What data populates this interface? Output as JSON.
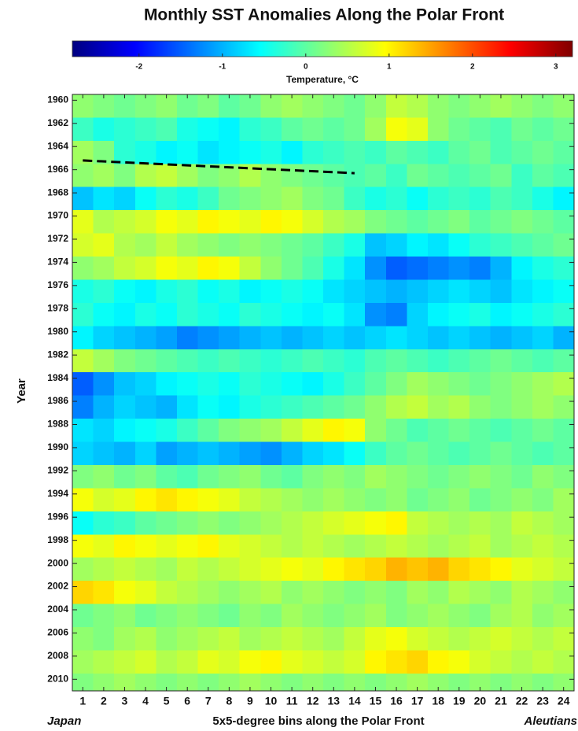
{
  "chart_data": {
    "type": "heatmap",
    "title": "Monthly SST Anomalies Along the Polar Front",
    "colormap": "jet",
    "clim": [
      -2.8,
      3.2
    ],
    "colorbar_ticks": [
      -2,
      -1,
      0,
      1,
      2,
      3
    ],
    "colorbar_label": "Temperature, °C",
    "y_label": "Year",
    "x_label": "5x5-degree bins along the Polar Front",
    "x_left_label": "Japan",
    "x_right_label": "Aleutians",
    "categories": [
      1,
      2,
      3,
      4,
      5,
      6,
      7,
      8,
      9,
      10,
      11,
      12,
      13,
      14,
      15,
      16,
      17,
      18,
      19,
      20,
      21,
      22,
      23,
      24
    ],
    "ylim": [
      1959.5,
      2011
    ],
    "yticks": [
      1960,
      1962,
      1964,
      1966,
      1968,
      1970,
      1972,
      1974,
      1976,
      1978,
      1980,
      1982,
      1984,
      1986,
      1988,
      1990,
      1992,
      1994,
      1996,
      1998,
      2000,
      2002,
      2004,
      2006,
      2008,
      2010
    ],
    "y_bins": [
      1959.5,
      1961.5,
      1963.5,
      1965.5,
      1967.5,
      1969.5,
      1971.5,
      1973.5,
      1975.5,
      1977.5,
      1979.5,
      1981.5,
      1983.5,
      1985.5,
      1987.5,
      1989.5,
      1991.5,
      1993.5,
      1995.5,
      1997.5,
      1999.5,
      2001.5,
      2003.5,
      2005.5,
      2007.5,
      2009.5,
      2011
    ],
    "values": [
      [
        0.3,
        0.2,
        0.1,
        0.2,
        0.3,
        0.1,
        0.2,
        0.0,
        0.1,
        0.3,
        0.4,
        0.3,
        0.2,
        0.1,
        0.3,
        0.6,
        0.5,
        0.3,
        0.2,
        0.3,
        0.4,
        0.3,
        0.2,
        0.3
      ],
      [
        -0.2,
        -0.4,
        -0.3,
        -0.2,
        -0.1,
        -0.4,
        -0.5,
        -0.6,
        -0.3,
        -0.2,
        0.0,
        0.1,
        0.0,
        0.1,
        0.4,
        0.9,
        0.8,
        0.3,
        0.1,
        0.0,
        -0.1,
        0.1,
        0.0,
        0.1
      ],
      [
        0.4,
        0.2,
        -0.3,
        -0.4,
        -0.6,
        -0.5,
        -0.7,
        -0.6,
        -0.5,
        -0.4,
        -0.6,
        -0.3,
        -0.2,
        -0.1,
        -0.2,
        0.0,
        -0.1,
        -0.2,
        0.0,
        0.1,
        -0.1,
        0.0,
        0.1,
        0.0
      ],
      [
        0.3,
        0.4,
        0.2,
        0.5,
        0.6,
        0.4,
        0.2,
        0.3,
        0.5,
        0.3,
        0.2,
        0.1,
        0.0,
        -0.1,
        0.0,
        -0.2,
        0.1,
        0.0,
        -0.1,
        0.0,
        0.1,
        -0.2,
        0.0,
        -0.1
      ],
      [
        -0.9,
        -0.7,
        -0.8,
        -0.5,
        -0.3,
        -0.4,
        -0.2,
        0.1,
        0.2,
        0.3,
        0.4,
        0.2,
        0.1,
        -0.2,
        -0.4,
        -0.3,
        -0.5,
        -0.3,
        -0.2,
        -0.3,
        -0.1,
        -0.2,
        -0.4,
        -0.6
      ],
      [
        0.8,
        0.5,
        0.6,
        0.7,
        0.9,
        0.8,
        1.0,
        0.9,
        0.8,
        1.0,
        0.9,
        0.7,
        0.5,
        0.4,
        0.2,
        0.1,
        0.0,
        0.1,
        0.2,
        0.0,
        0.1,
        0.2,
        0.1,
        0.0
      ],
      [
        0.7,
        0.8,
        0.5,
        0.4,
        0.6,
        0.4,
        0.3,
        0.2,
        0.3,
        0.2,
        0.1,
        0.0,
        -0.2,
        -0.4,
        -0.9,
        -0.8,
        -0.6,
        -0.7,
        -0.5,
        -0.3,
        -0.2,
        -0.1,
        0.0,
        0.1
      ],
      [
        0.3,
        0.4,
        0.6,
        0.7,
        0.9,
        0.8,
        1.0,
        0.9,
        0.6,
        0.3,
        0.1,
        -0.1,
        -0.4,
        -0.7,
        -1.2,
        -1.5,
        -1.4,
        -1.3,
        -1.2,
        -1.3,
        -1.0,
        -0.6,
        -0.4,
        -0.3
      ],
      [
        -0.4,
        -0.3,
        -0.5,
        -0.6,
        -0.4,
        -0.3,
        -0.5,
        -0.4,
        -0.6,
        -0.5,
        -0.4,
        -0.5,
        -0.7,
        -0.8,
        -0.9,
        -1.0,
        -0.9,
        -0.8,
        -0.7,
        -0.8,
        -0.9,
        -0.7,
        -0.6,
        -0.5
      ],
      [
        -0.3,
        -0.5,
        -0.6,
        -0.4,
        -0.5,
        -0.3,
        -0.4,
        -0.5,
        -0.3,
        -0.4,
        -0.5,
        -0.6,
        -0.5,
        -0.7,
        -1.2,
        -1.3,
        -0.8,
        -0.6,
        -0.5,
        -0.4,
        -0.6,
        -0.5,
        -0.4,
        -0.3
      ],
      [
        -0.6,
        -0.8,
        -0.9,
        -1.0,
        -1.1,
        -1.3,
        -1.2,
        -1.1,
        -1.0,
        -0.9,
        -1.0,
        -0.9,
        -0.8,
        -0.9,
        -0.8,
        -0.7,
        -0.8,
        -0.9,
        -0.8,
        -0.9,
        -1.0,
        -0.9,
        -0.8,
        -1.0
      ],
      [
        0.6,
        0.4,
        0.2,
        0.1,
        0.0,
        -0.1,
        -0.2,
        -0.1,
        -0.2,
        -0.3,
        -0.2,
        -0.1,
        -0.2,
        -0.3,
        -0.1,
        0.0,
        -0.1,
        -0.2,
        -0.1,
        0.0,
        0.1,
        0.0,
        -0.1,
        0.0
      ],
      [
        -1.5,
        -1.2,
        -0.9,
        -0.8,
        -0.6,
        -0.5,
        -0.4,
        -0.5,
        -0.3,
        -0.4,
        -0.5,
        -0.6,
        -0.4,
        -0.2,
        0.0,
        0.2,
        0.4,
        0.3,
        0.2,
        0.1,
        0.2,
        0.3,
        0.4,
        0.5
      ],
      [
        -1.3,
        -1.0,
        -0.8,
        -0.9,
        -1.0,
        -0.7,
        -0.5,
        -0.6,
        -0.4,
        -0.3,
        -0.2,
        -0.1,
        0.0,
        0.1,
        0.3,
        0.5,
        0.6,
        0.4,
        0.5,
        0.3,
        0.2,
        0.3,
        0.4,
        0.3
      ],
      [
        -0.7,
        -0.8,
        -0.6,
        -0.5,
        -0.4,
        -0.2,
        0.0,
        0.2,
        0.3,
        0.4,
        0.6,
        0.8,
        1.0,
        0.9,
        0.3,
        0.1,
        -0.1,
        0.0,
        0.1,
        0.0,
        -0.1,
        0.0,
        0.1,
        0.0
      ],
      [
        -0.8,
        -0.9,
        -1.0,
        -0.8,
        -1.1,
        -1.0,
        -0.9,
        -1.0,
        -1.1,
        -1.2,
        -1.0,
        -0.8,
        -0.7,
        -0.5,
        -0.2,
        0.0,
        0.1,
        0.0,
        -0.1,
        0.0,
        0.1,
        0.0,
        -0.1,
        0.0
      ],
      [
        0.2,
        0.3,
        0.1,
        0.2,
        0.0,
        -0.1,
        0.1,
        0.2,
        0.3,
        0.1,
        0.0,
        0.2,
        0.3,
        0.2,
        0.4,
        0.3,
        0.2,
        0.1,
        0.2,
        0.3,
        0.2,
        0.1,
        0.3,
        0.2
      ],
      [
        0.9,
        0.7,
        0.8,
        1.0,
        1.1,
        1.0,
        0.9,
        0.8,
        0.6,
        0.5,
        0.4,
        0.3,
        0.4,
        0.3,
        0.2,
        0.3,
        0.1,
        0.2,
        0.3,
        0.1,
        0.2,
        0.3,
        0.2,
        0.4
      ],
      [
        -0.5,
        -0.3,
        -0.2,
        0.0,
        0.1,
        0.2,
        0.3,
        0.2,
        0.3,
        0.4,
        0.5,
        0.6,
        0.7,
        0.8,
        0.9,
        1.0,
        0.6,
        0.5,
        0.4,
        0.5,
        0.4,
        0.6,
        0.5,
        0.4
      ],
      [
        0.9,
        0.8,
        1.0,
        0.9,
        0.8,
        0.9,
        1.0,
        0.8,
        0.7,
        0.6,
        0.5,
        0.6,
        0.5,
        0.4,
        0.5,
        0.6,
        0.5,
        0.4,
        0.5,
        0.6,
        0.4,
        0.5,
        0.6,
        0.5
      ],
      [
        0.4,
        0.5,
        0.6,
        0.5,
        0.4,
        0.6,
        0.5,
        0.6,
        0.7,
        0.8,
        0.9,
        0.8,
        1.0,
        1.1,
        1.2,
        1.4,
        1.3,
        1.4,
        1.2,
        1.1,
        1.0,
        0.8,
        0.7,
        0.6
      ],
      [
        1.2,
        1.1,
        0.9,
        0.8,
        0.6,
        0.5,
        0.4,
        0.3,
        0.4,
        0.5,
        0.3,
        0.4,
        0.3,
        0.2,
        0.3,
        0.2,
        0.4,
        0.3,
        0.5,
        0.4,
        0.3,
        0.5,
        0.4,
        0.3
      ],
      [
        0.1,
        0.2,
        0.3,
        0.1,
        0.2,
        0.3,
        0.2,
        0.1,
        0.3,
        0.2,
        0.4,
        0.3,
        0.2,
        0.3,
        0.4,
        0.2,
        0.3,
        0.4,
        0.3,
        0.2,
        0.4,
        0.5,
        0.3,
        0.4
      ],
      [
        0.3,
        0.2,
        0.4,
        0.5,
        0.3,
        0.4,
        0.5,
        0.6,
        0.4,
        0.5,
        0.6,
        0.5,
        0.4,
        0.6,
        0.8,
        0.9,
        0.7,
        0.6,
        0.5,
        0.6,
        0.7,
        0.6,
        0.5,
        0.6
      ],
      [
        0.4,
        0.5,
        0.6,
        0.7,
        0.5,
        0.6,
        0.8,
        0.7,
        0.9,
        1.0,
        0.8,
        0.7,
        0.6,
        0.7,
        1.0,
        1.1,
        1.2,
        1.0,
        0.9,
        0.7,
        0.6,
        0.5,
        0.6,
        0.5
      ],
      [
        0.2,
        0.3,
        0.4,
        0.3,
        0.2,
        0.3,
        0.2,
        0.3,
        0.4,
        0.3,
        0.2,
        0.3,
        0.2,
        0.3,
        0.2,
        0.3,
        0.4,
        0.3,
        0.2,
        0.3,
        0.2,
        0.3,
        0.2,
        0.3
      ]
    ],
    "trend_line": {
      "x": [
        1,
        14
      ],
      "y": [
        1965.2,
        1966.3
      ],
      "color": "#000000"
    }
  }
}
